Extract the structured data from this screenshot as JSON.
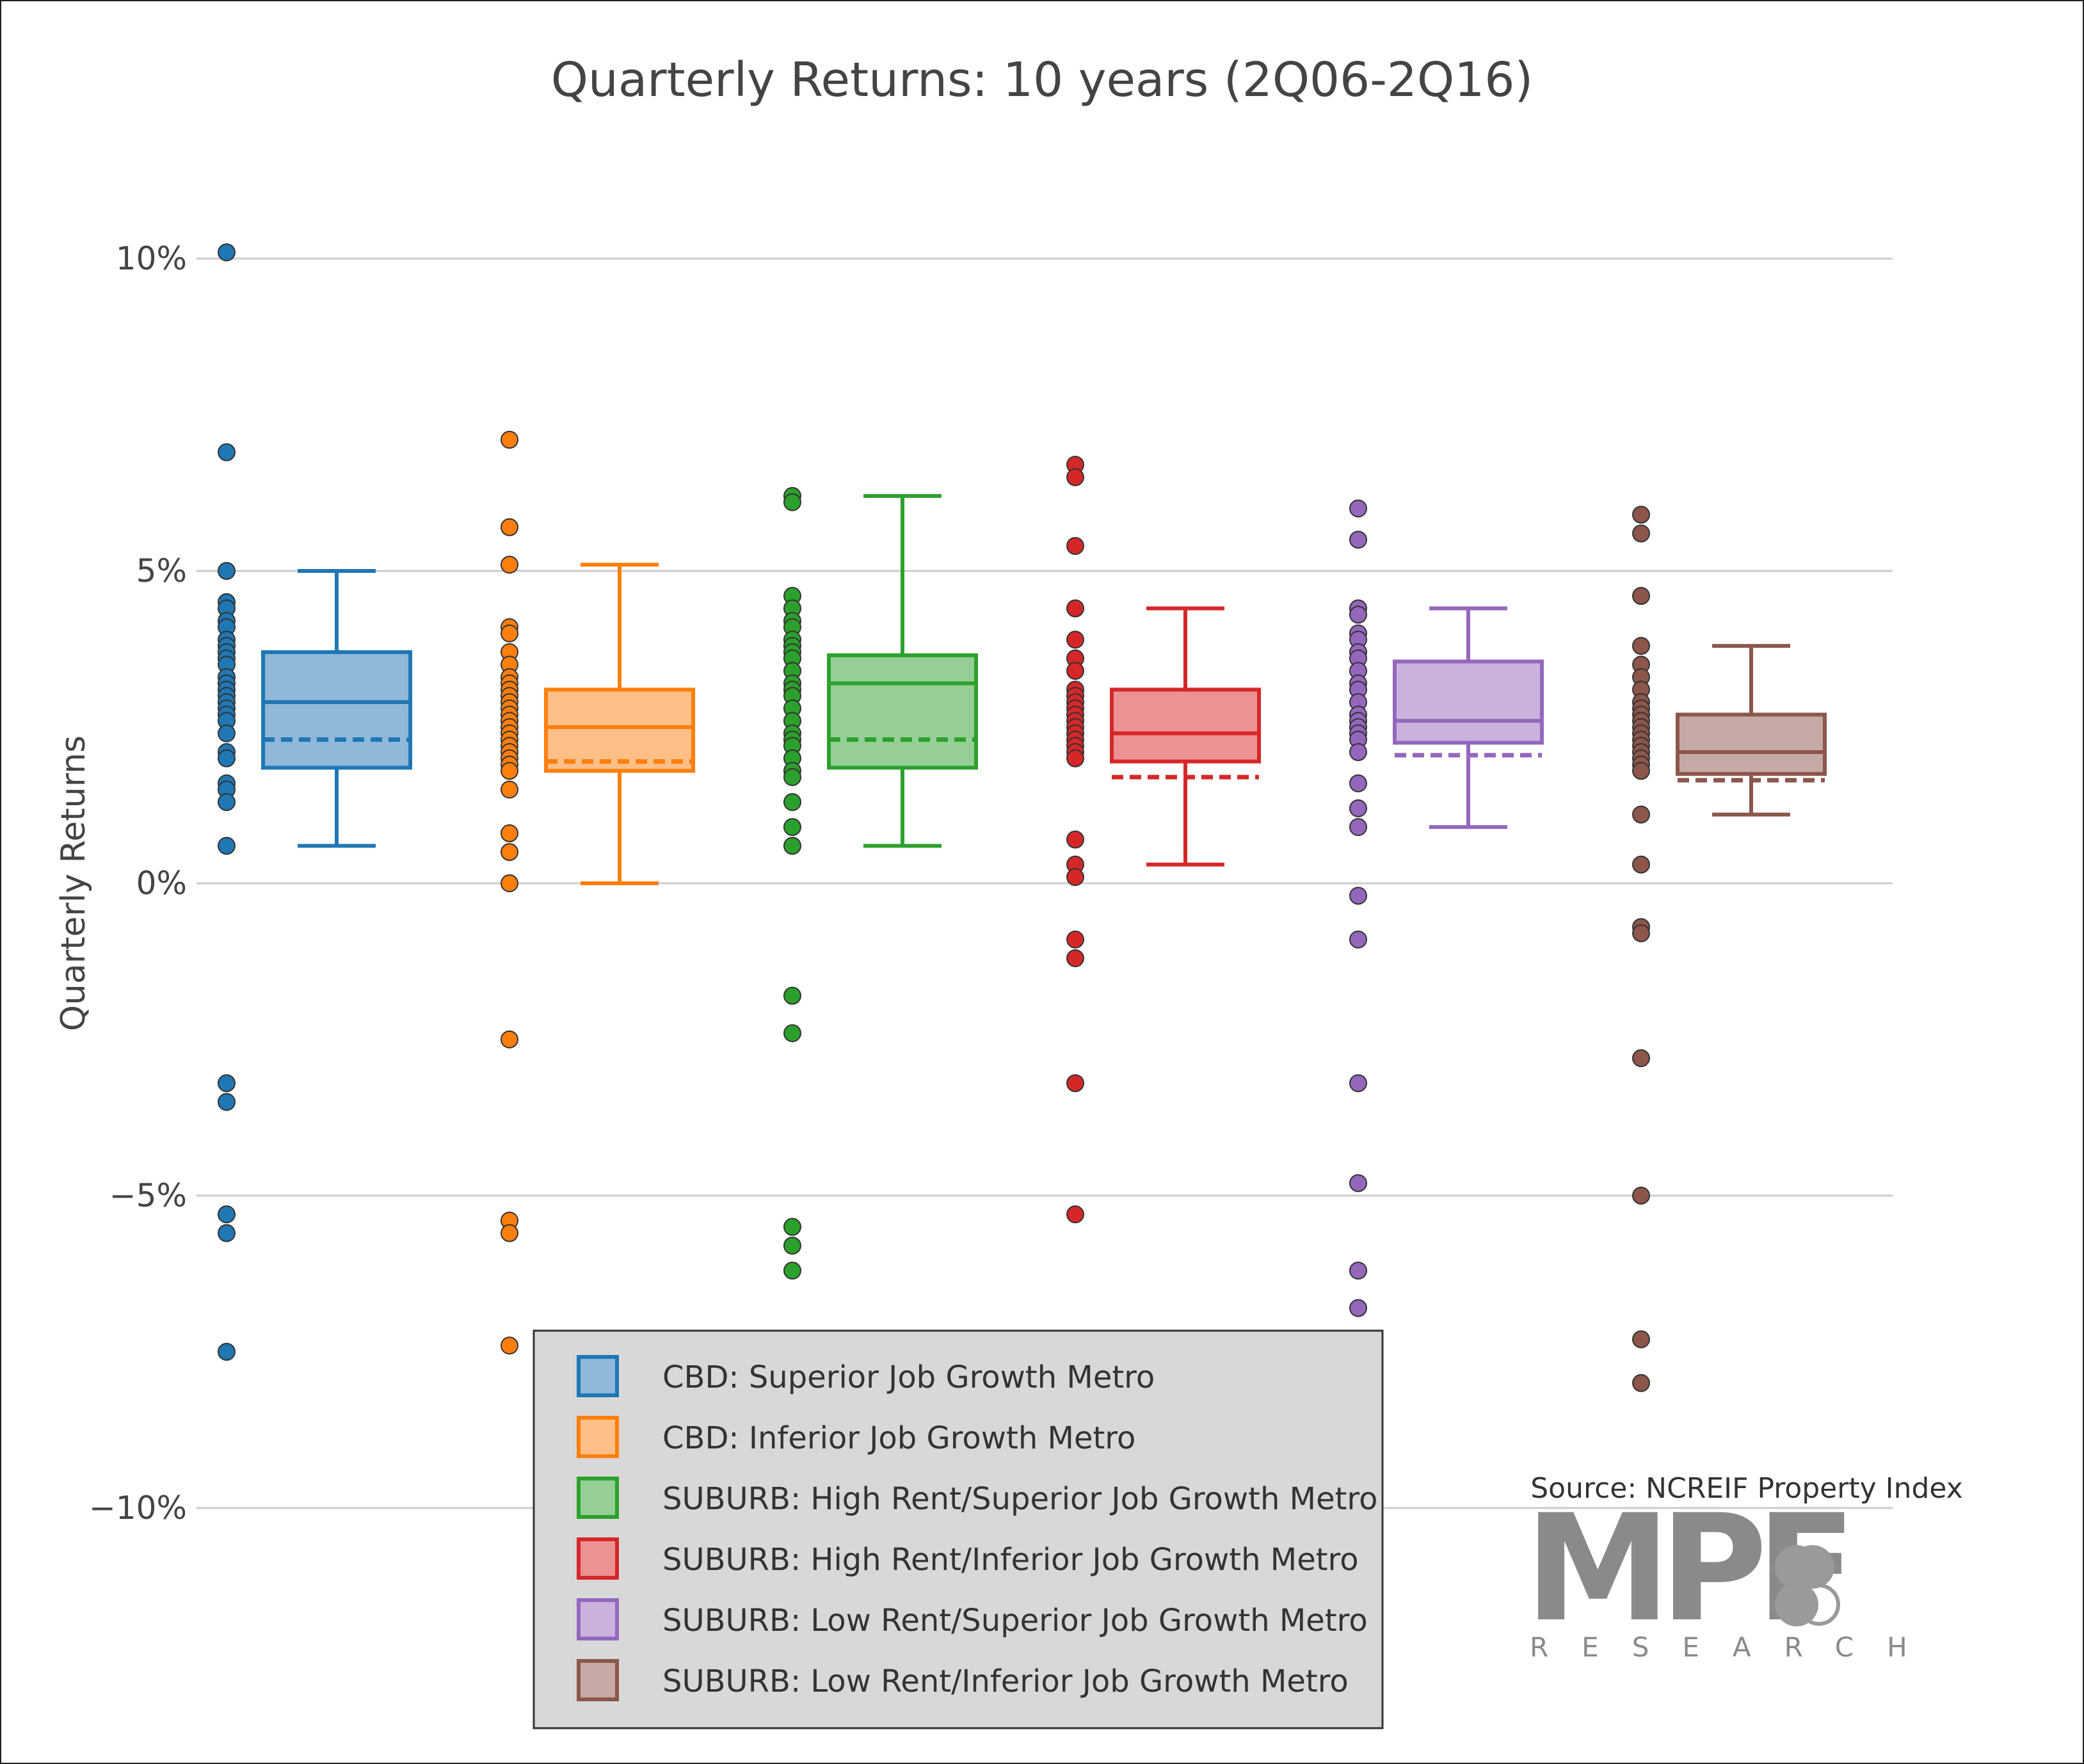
{
  "chart_data": {
    "type": "box",
    "title": "Quarterly Returns: 10 years (2Q06-2Q16)",
    "ylabel": "Quarterly Returns",
    "xlabel": "",
    "ylim": [
      -11.5,
      13.5
    ],
    "yticks": [
      10,
      5,
      0,
      -5,
      -10
    ],
    "ytick_labels": [
      "10%",
      "5%",
      "0%",
      "−5%",
      "−10%"
    ],
    "grid": true,
    "legend_position": "bottom-center",
    "source": "Source: NCREIF Property Index",
    "logo_text": "MPF",
    "logo_subtext": "RESEARCH",
    "series": [
      {
        "name": "CBD: Superior Job Growth Metro",
        "color": "#1f77b4",
        "fill": "#8fb8d9",
        "whisker_low": 0.6,
        "q1": 1.85,
        "median": 2.9,
        "mean": 2.3,
        "q3": 3.7,
        "whisker_high": 5.0,
        "points": [
          10.1,
          6.9,
          5.0,
          4.5,
          4.4,
          4.2,
          4.1,
          3.9,
          3.8,
          3.7,
          3.6,
          3.5,
          3.3,
          3.2,
          3.1,
          3.0,
          2.9,
          2.8,
          2.7,
          2.6,
          2.4,
          2.1,
          2.0,
          1.6,
          1.5,
          1.3,
          0.6,
          -3.2,
          -3.5,
          -5.3,
          -5.6,
          -7.5
        ]
      },
      {
        "name": "CBD: Inferior Job Growth Metro",
        "color": "#ff7f0e",
        "fill": "#ffbf86",
        "whisker_low": 0.0,
        "q1": 1.8,
        "median": 2.5,
        "mean": 1.95,
        "q3": 3.1,
        "whisker_high": 5.1,
        "points": [
          7.1,
          5.7,
          5.1,
          4.1,
          4.0,
          3.7,
          3.5,
          3.3,
          3.2,
          3.1,
          3.0,
          2.9,
          2.8,
          2.7,
          2.6,
          2.5,
          2.4,
          2.3,
          2.2,
          2.1,
          2.0,
          1.9,
          1.8,
          1.5,
          0.8,
          0.5,
          0.0,
          -2.5,
          -5.4,
          -5.6,
          -7.4
        ]
      },
      {
        "name": "SUBURB: High Rent/Superior Job Growth Metro",
        "color": "#2ca02c",
        "fill": "#96cf96",
        "whisker_low": 0.6,
        "q1": 1.85,
        "median": 3.2,
        "mean": 2.3,
        "q3": 3.65,
        "whisker_high": 6.2,
        "points": [
          6.2,
          6.1,
          4.6,
          4.4,
          4.2,
          4.1,
          3.9,
          3.8,
          3.7,
          3.6,
          3.4,
          3.2,
          3.1,
          3.0,
          2.8,
          2.6,
          2.4,
          2.3,
          2.2,
          2.0,
          1.8,
          1.7,
          1.3,
          0.9,
          0.6,
          -1.8,
          -2.4,
          -5.5,
          -5.8,
          -6.2
        ]
      },
      {
        "name": "SUBURB: High Rent/Inferior Job Growth Metro",
        "color": "#d62728",
        "fill": "#eb9394",
        "whisker_low": 0.3,
        "q1": 1.95,
        "median": 2.4,
        "mean": 1.7,
        "q3": 3.1,
        "whisker_high": 4.4,
        "points": [
          6.7,
          6.5,
          5.4,
          4.4,
          3.9,
          3.6,
          3.4,
          3.1,
          3.0,
          2.9,
          2.8,
          2.7,
          2.6,
          2.5,
          2.4,
          2.3,
          2.2,
          2.1,
          2.0,
          0.7,
          0.3,
          0.1,
          -0.9,
          -1.2,
          -3.2,
          -5.3
        ]
      },
      {
        "name": "SUBURB: Low Rent/Superior Job Growth Metro",
        "color": "#9467bd",
        "fill": "#c9b3de",
        "whisker_low": 0.9,
        "q1": 2.25,
        "median": 2.6,
        "mean": 2.05,
        "q3": 3.55,
        "whisker_high": 4.4,
        "points": [
          6.0,
          5.5,
          4.4,
          4.3,
          4.0,
          3.9,
          3.7,
          3.6,
          3.4,
          3.2,
          3.1,
          2.9,
          2.7,
          2.6,
          2.5,
          2.4,
          2.3,
          2.1,
          1.6,
          1.2,
          0.9,
          -0.2,
          -0.9,
          -3.2,
          -4.8,
          -6.2,
          -6.8
        ]
      },
      {
        "name": "SUBURB: Low Rent/Inferior Job Growth Metro",
        "color": "#8c564b",
        "fill": "#c5aaa5",
        "whisker_low": 1.1,
        "q1": 1.75,
        "median": 2.1,
        "mean": 1.65,
        "q3": 2.7,
        "whisker_high": 3.8,
        "points": [
          5.9,
          5.6,
          4.6,
          3.8,
          3.5,
          3.3,
          3.1,
          2.9,
          2.8,
          2.7,
          2.6,
          2.5,
          2.4,
          2.3,
          2.2,
          2.1,
          2.0,
          1.9,
          1.8,
          1.1,
          0.3,
          -0.7,
          -0.8,
          -2.8,
          -5.0,
          -7.3,
          -8.0
        ]
      }
    ]
  }
}
